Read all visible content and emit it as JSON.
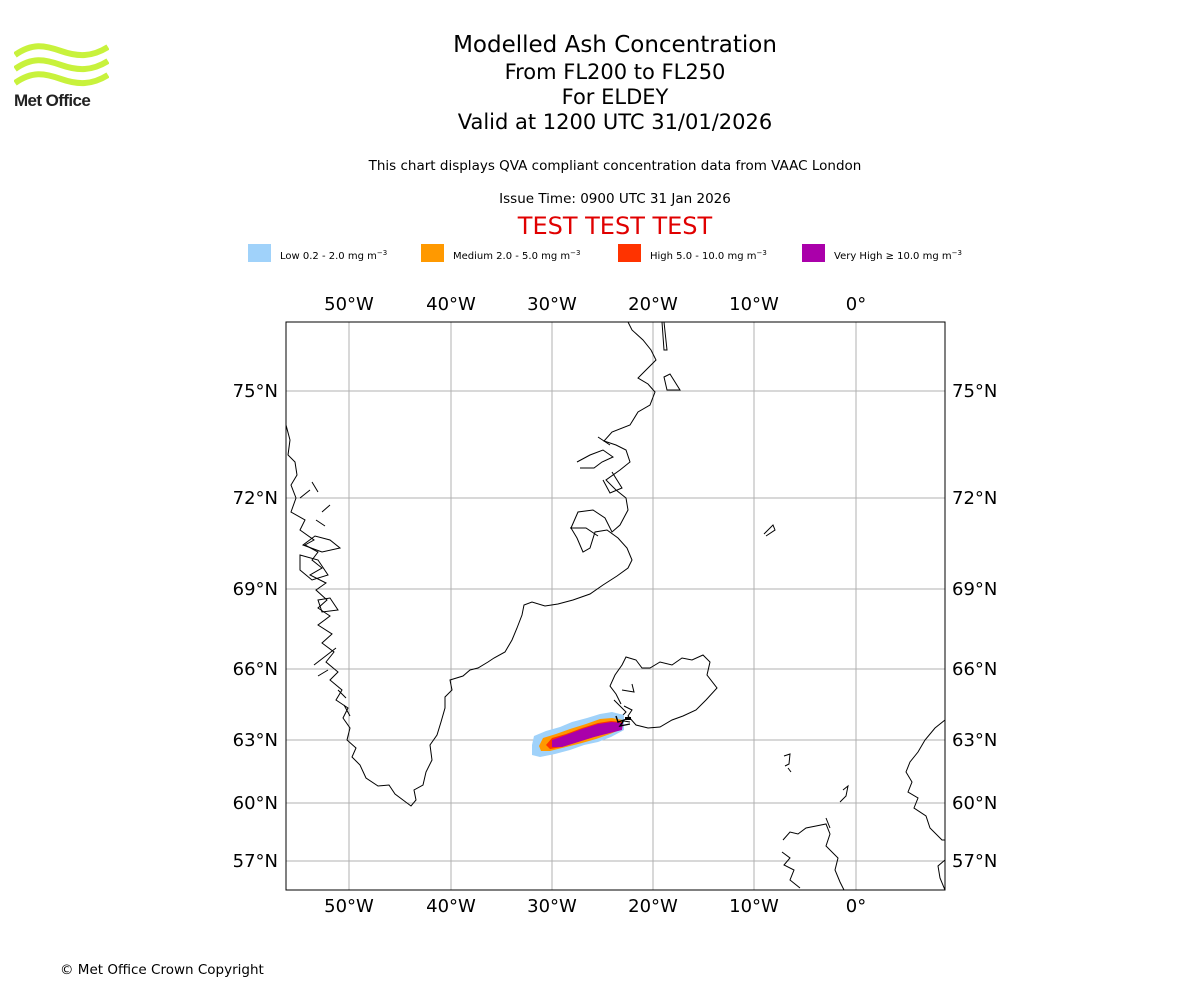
{
  "branding": {
    "logo_text": "Met Office",
    "logo_color": "#c8f23c",
    "logo_icon": "wave-stripes-icon"
  },
  "header": {
    "title": "Modelled Ash Concentration",
    "level_range": "From FL200 to FL250",
    "region": "For ELDEY",
    "valid_time": "Valid at 1200 UTC 31/01/2026",
    "disclaimer": "This chart displays QVA compliant concentration data from VAAC London",
    "issue_time": "Issue Time: 0900 UTC 31 Jan 2026",
    "test_banner": "TEST TEST TEST",
    "test_color": "#e00000"
  },
  "legend": [
    {
      "label": "Low 0.2 - 2.0 mg m",
      "unit_exp": "−3",
      "color": "#a0d2fa"
    },
    {
      "label": "Medium 2.0 - 5.0 mg m",
      "unit_exp": "−3",
      "color": "#ff9900"
    },
    {
      "label": "High 5.0 - 10.0 mg m",
      "unit_exp": "−3",
      "color": "#ff3300"
    },
    {
      "label": "Very High  ≥  10.0 mg m",
      "unit_exp": "−3",
      "color": "#aa00aa"
    }
  ],
  "map": {
    "lon_ticks": [
      "50°W",
      "40°W",
      "30°W",
      "20°W",
      "10°W",
      "0°"
    ],
    "lat_ticks": [
      "75°N",
      "72°N",
      "69°N",
      "66°N",
      "63°N",
      "60°N",
      "57°N"
    ],
    "extent": {
      "lon": [
        -56.3,
        8.7
      ],
      "lat": [
        56,
        77.3
      ]
    },
    "grid": true
  },
  "footer": {
    "copyright": "© Met Office Crown Copyright"
  }
}
